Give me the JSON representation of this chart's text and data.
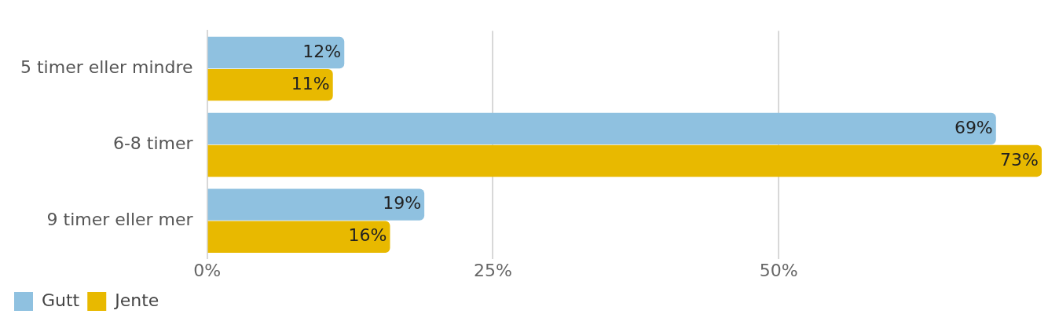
{
  "chart_data": {
    "type": "bar",
    "orientation": "horizontal",
    "categories": [
      "5 timer eller mindre",
      "6-8 timer",
      "9 timer eller mer"
    ],
    "series": [
      {
        "name": "Gutt",
        "color": "#8fc1e0",
        "values": [
          12,
          69,
          19
        ],
        "value_labels": [
          "12%",
          "69%",
          "19%"
        ]
      },
      {
        "name": "Jente",
        "color": "#e8b900",
        "values": [
          11,
          73,
          16
        ],
        "value_labels": [
          "11%",
          "73%",
          "16%"
        ]
      }
    ],
    "xlim": [
      0,
      73
    ],
    "xticks": [
      {
        "value": 0,
        "label": "0%"
      },
      {
        "value": 25,
        "label": "25%"
      },
      {
        "value": 50,
        "label": "50%"
      }
    ],
    "grid": "x",
    "legend": "bottom left"
  }
}
